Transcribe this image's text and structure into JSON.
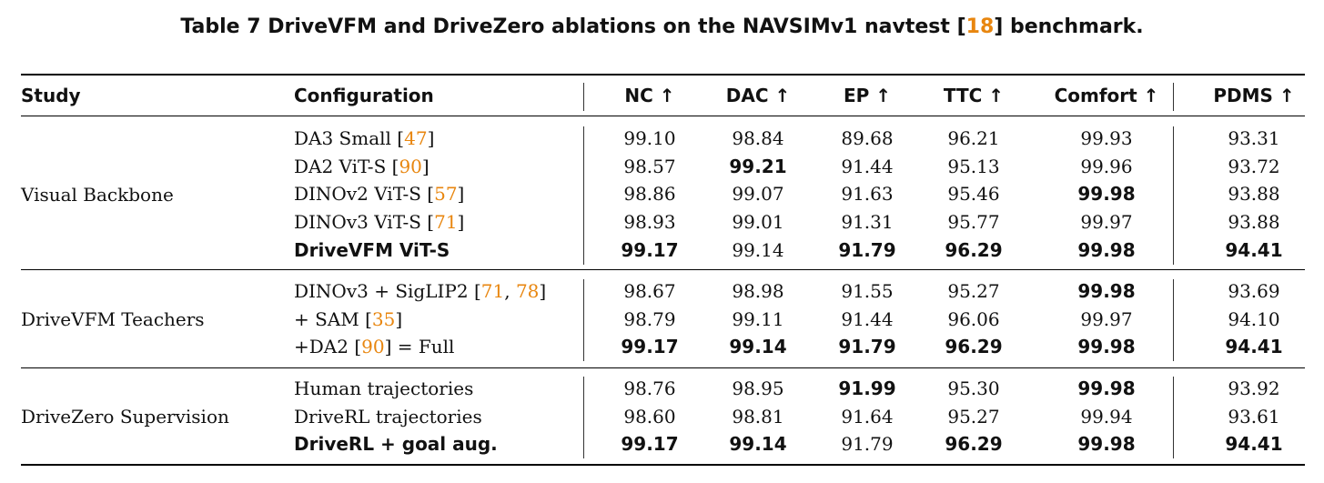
{
  "caption": {
    "prefix": "Table 7  DriveVFM and DriveZero ablations on the NAVSIMv1 navtest [",
    "ref": "18",
    "suffix": "] benchmark."
  },
  "headers": [
    "Study",
    "Configuration",
    "NC ↑",
    "DAC ↑",
    "EP ↑",
    "TTC ↑",
    "Comfort ↑",
    "PDMS ↑"
  ],
  "groups": [
    {
      "study": "Visual Backbone",
      "rows": [
        {
          "config": "DA3 Small [",
          "ref": "47",
          "close": "]",
          "bold_config": false,
          "values": [
            "99.10",
            "98.84",
            "89.68",
            "96.21",
            "99.93",
            "93.31"
          ],
          "bold": [
            false,
            false,
            false,
            false,
            false,
            false
          ]
        },
        {
          "config": "DA2 ViT-S [",
          "ref": "90",
          "close": "]",
          "bold_config": false,
          "values": [
            "98.57",
            "99.21",
            "91.44",
            "95.13",
            "99.96",
            "93.72"
          ],
          "bold": [
            false,
            true,
            false,
            false,
            false,
            false
          ]
        },
        {
          "config": "DINOv2 ViT-S [",
          "ref": "57",
          "close": "]",
          "bold_config": false,
          "values": [
            "98.86",
            "99.07",
            "91.63",
            "95.46",
            "99.98",
            "93.88"
          ],
          "bold": [
            false,
            false,
            false,
            false,
            true,
            false
          ]
        },
        {
          "config": "DINOv3 ViT-S [",
          "ref": "71",
          "close": "]",
          "bold_config": false,
          "values": [
            "98.93",
            "99.01",
            "91.31",
            "95.77",
            "99.97",
            "93.88"
          ],
          "bold": [
            false,
            false,
            false,
            false,
            false,
            false
          ]
        },
        {
          "config": "DriveVFM ViT-S",
          "ref": "",
          "close": "",
          "bold_config": true,
          "values": [
            "99.17",
            "99.14",
            "91.79",
            "96.29",
            "99.98",
            "94.41"
          ],
          "bold": [
            true,
            false,
            true,
            true,
            true,
            true
          ]
        }
      ]
    },
    {
      "study": "DriveVFM Teachers",
      "rows": [
        {
          "config": "DINOv3 + SigLIP2 [",
          "ref": "71",
          "ref2": "78",
          "close": "]",
          "bold_config": false,
          "values": [
            "98.67",
            "98.98",
            "91.55",
            "95.27",
            "99.98",
            "93.69"
          ],
          "bold": [
            false,
            false,
            false,
            false,
            true,
            false
          ]
        },
        {
          "config": "+ SAM [",
          "ref": "35",
          "close": "]",
          "bold_config": false,
          "values": [
            "98.79",
            "99.11",
            "91.44",
            "96.06",
            "99.97",
            "94.10"
          ],
          "bold": [
            false,
            false,
            false,
            false,
            false,
            false
          ]
        },
        {
          "config": "+DA2 [",
          "ref": "90",
          "close": "] = Full",
          "bold_config": false,
          "values": [
            "99.17",
            "99.14",
            "91.79",
            "96.29",
            "99.98",
            "94.41"
          ],
          "bold": [
            true,
            true,
            true,
            true,
            true,
            true
          ]
        }
      ]
    },
    {
      "study": "DriveZero Supervision",
      "rows": [
        {
          "config": "Human trajectories",
          "ref": "",
          "close": "",
          "bold_config": false,
          "values": [
            "98.76",
            "98.95",
            "91.99",
            "95.30",
            "99.98",
            "93.92"
          ],
          "bold": [
            false,
            false,
            true,
            false,
            true,
            false
          ]
        },
        {
          "config": "DriveRL trajectories",
          "ref": "",
          "close": "",
          "bold_config": false,
          "values": [
            "98.60",
            "98.81",
            "91.64",
            "95.27",
            "99.94",
            "93.61"
          ],
          "bold": [
            false,
            false,
            false,
            false,
            false,
            false
          ]
        },
        {
          "config": "DriveRL + goal aug.",
          "ref": "",
          "close": "",
          "bold_config": true,
          "values": [
            "99.17",
            "99.14",
            "91.79",
            "96.29",
            "99.98",
            "94.41"
          ],
          "bold": [
            true,
            true,
            false,
            true,
            true,
            true
          ]
        }
      ]
    }
  ]
}
